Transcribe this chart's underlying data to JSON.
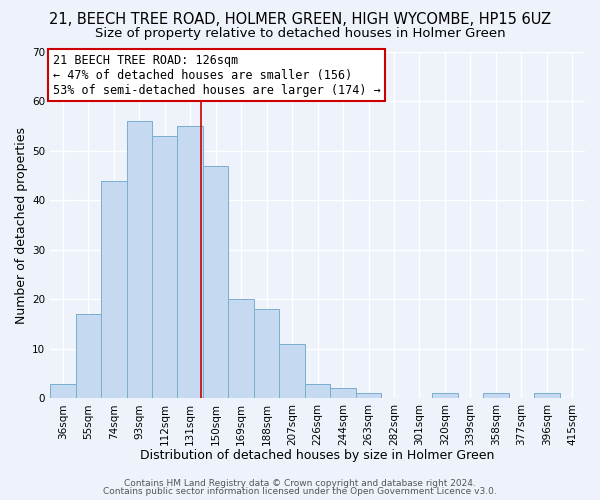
{
  "title": "21, BEECH TREE ROAD, HOLMER GREEN, HIGH WYCOMBE, HP15 6UZ",
  "subtitle": "Size of property relative to detached houses in Holmer Green",
  "xlabel": "Distribution of detached houses by size in Holmer Green",
  "ylabel": "Number of detached properties",
  "bin_labels": [
    "36sqm",
    "55sqm",
    "74sqm",
    "93sqm",
    "112sqm",
    "131sqm",
    "150sqm",
    "169sqm",
    "188sqm",
    "207sqm",
    "226sqm",
    "244sqm",
    "263sqm",
    "282sqm",
    "301sqm",
    "320sqm",
    "339sqm",
    "358sqm",
    "377sqm",
    "396sqm",
    "415sqm"
  ],
  "bar_values": [
    3,
    17,
    44,
    56,
    53,
    55,
    47,
    20,
    18,
    11,
    3,
    2,
    1,
    0,
    0,
    1,
    0,
    1,
    0,
    1,
    0
  ],
  "bar_color": "#c5d9f1",
  "bar_edge_color": "#7aadcf",
  "vline_x_bin": 5,
  "vline_color": "#cc0000",
  "annotation_text_line1": "21 BEECH TREE ROAD: 126sqm",
  "annotation_text_line2": "← 47% of detached houses are smaller (156)",
  "annotation_text_line3": "53% of semi-detached houses are larger (174) →",
  "annotation_box_color": "#cc0000",
  "ylim": [
    0,
    70
  ],
  "yticks": [
    0,
    10,
    20,
    30,
    40,
    50,
    60,
    70
  ],
  "footer1": "Contains HM Land Registry data © Crown copyright and database right 2024.",
  "footer2": "Contains public sector information licensed under the Open Government Licence v3.0.",
  "bg_color": "#eef2fa",
  "grid_color": "#ffffff",
  "title_fontsize": 10.5,
  "subtitle_fontsize": 9.5,
  "xlabel_fontsize": 9,
  "ylabel_fontsize": 9,
  "tick_fontsize": 7.5,
  "annotation_fontsize": 8.5,
  "footer_fontsize": 6.5
}
